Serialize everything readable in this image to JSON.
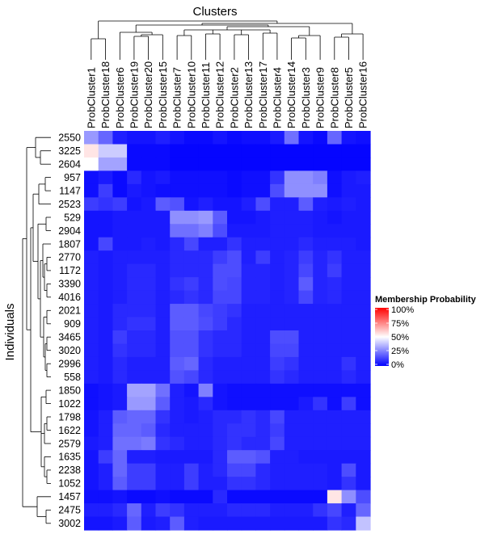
{
  "chart_data": {
    "type": "heatmap",
    "title": "Clusters",
    "ylabel": "Individuals",
    "columns": [
      "ProbCluster1",
      "ProbCluster18",
      "ProbCluster6",
      "ProbCluster19",
      "ProbCluster20",
      "ProbCluster15",
      "ProbCluster7",
      "ProbCluster10",
      "ProbCluster11",
      "ProbCluster12",
      "ProbCluster2",
      "ProbCluster13",
      "ProbCluster17",
      "ProbCluster4",
      "ProbCluster14",
      "ProbCluster3",
      "ProbCluster9",
      "ProbCluster8",
      "ProbCluster5",
      "ProbCluster16"
    ],
    "rows": [
      "2550",
      "3225",
      "2604",
      "957",
      "1147",
      "2523",
      "529",
      "2904",
      "1807",
      "2770",
      "1172",
      "3390",
      "4016",
      "2021",
      "909",
      "3465",
      "3020",
      "2996",
      "558",
      "1850",
      "1022",
      "1798",
      "1622",
      "2579",
      "1635",
      "2238",
      "1052",
      "1457",
      "2475",
      "3002"
    ],
    "values": [
      [
        0.3,
        0.2,
        0.06,
        0.04,
        0.04,
        0.06,
        0.04,
        0.02,
        0.02,
        0.04,
        0.02,
        0.03,
        0.03,
        0.05,
        0.22,
        0.04,
        0.02,
        0.2,
        0.04,
        0.03
      ],
      [
        0.55,
        0.4,
        0.4,
        0.02,
        0.02,
        0.02,
        0.01,
        0.01,
        0.01,
        0.01,
        0.01,
        0.01,
        0.01,
        0.01,
        0.01,
        0.01,
        0.01,
        0.01,
        0.01,
        0.01
      ],
      [
        0.5,
        0.32,
        0.32,
        0.02,
        0.02,
        0.02,
        0.01,
        0.01,
        0.01,
        0.01,
        0.01,
        0.01,
        0.01,
        0.01,
        0.01,
        0.01,
        0.01,
        0.01,
        0.01,
        0.01
      ],
      [
        0.03,
        0.05,
        0.02,
        0.08,
        0.04,
        0.05,
        0.03,
        0.03,
        0.03,
        0.03,
        0.02,
        0.03,
        0.03,
        0.1,
        0.28,
        0.28,
        0.25,
        0.03,
        0.05,
        0.06
      ],
      [
        0.03,
        0.12,
        0.02,
        0.05,
        0.04,
        0.03,
        0.03,
        0.03,
        0.03,
        0.03,
        0.02,
        0.03,
        0.03,
        0.15,
        0.28,
        0.28,
        0.28,
        0.03,
        0.05,
        0.05
      ],
      [
        0.12,
        0.1,
        0.12,
        0.04,
        0.05,
        0.18,
        0.16,
        0.04,
        0.06,
        0.04,
        0.04,
        0.06,
        0.15,
        0.06,
        0.06,
        0.18,
        0.06,
        0.05,
        0.06,
        0.05
      ],
      [
        0.04,
        0.04,
        0.05,
        0.05,
        0.05,
        0.05,
        0.28,
        0.28,
        0.3,
        0.18,
        0.04,
        0.04,
        0.05,
        0.06,
        0.06,
        0.06,
        0.05,
        0.04,
        0.05,
        0.05
      ],
      [
        0.04,
        0.04,
        0.05,
        0.05,
        0.05,
        0.05,
        0.22,
        0.22,
        0.25,
        0.15,
        0.05,
        0.05,
        0.05,
        0.06,
        0.06,
        0.06,
        0.05,
        0.05,
        0.05,
        0.05
      ],
      [
        0.04,
        0.14,
        0.05,
        0.05,
        0.06,
        0.05,
        0.08,
        0.14,
        0.06,
        0.06,
        0.1,
        0.06,
        0.06,
        0.06,
        0.06,
        0.08,
        0.06,
        0.06,
        0.06,
        0.05
      ],
      [
        0.06,
        0.05,
        0.06,
        0.06,
        0.06,
        0.06,
        0.08,
        0.08,
        0.08,
        0.12,
        0.15,
        0.06,
        0.12,
        0.06,
        0.07,
        0.12,
        0.07,
        0.1,
        0.06,
        0.06
      ],
      [
        0.06,
        0.05,
        0.06,
        0.08,
        0.08,
        0.06,
        0.08,
        0.08,
        0.08,
        0.15,
        0.15,
        0.07,
        0.07,
        0.06,
        0.07,
        0.14,
        0.07,
        0.12,
        0.06,
        0.06
      ],
      [
        0.06,
        0.05,
        0.06,
        0.08,
        0.08,
        0.06,
        0.1,
        0.12,
        0.08,
        0.15,
        0.14,
        0.07,
        0.07,
        0.06,
        0.07,
        0.18,
        0.07,
        0.08,
        0.06,
        0.06
      ],
      [
        0.06,
        0.05,
        0.06,
        0.08,
        0.08,
        0.06,
        0.08,
        0.1,
        0.08,
        0.14,
        0.14,
        0.07,
        0.07,
        0.06,
        0.07,
        0.14,
        0.07,
        0.08,
        0.06,
        0.06
      ],
      [
        0.06,
        0.05,
        0.08,
        0.08,
        0.08,
        0.06,
        0.18,
        0.18,
        0.14,
        0.12,
        0.1,
        0.06,
        0.06,
        0.06,
        0.06,
        0.06,
        0.06,
        0.06,
        0.06,
        0.06
      ],
      [
        0.06,
        0.05,
        0.08,
        0.1,
        0.1,
        0.06,
        0.18,
        0.18,
        0.15,
        0.12,
        0.08,
        0.06,
        0.06,
        0.06,
        0.06,
        0.06,
        0.06,
        0.06,
        0.06,
        0.06
      ],
      [
        0.06,
        0.05,
        0.12,
        0.08,
        0.08,
        0.06,
        0.16,
        0.16,
        0.1,
        0.08,
        0.08,
        0.06,
        0.06,
        0.15,
        0.15,
        0.06,
        0.06,
        0.06,
        0.06,
        0.06
      ],
      [
        0.06,
        0.05,
        0.1,
        0.08,
        0.08,
        0.06,
        0.16,
        0.16,
        0.1,
        0.08,
        0.08,
        0.06,
        0.06,
        0.14,
        0.14,
        0.06,
        0.06,
        0.06,
        0.06,
        0.06
      ],
      [
        0.06,
        0.05,
        0.08,
        0.06,
        0.06,
        0.06,
        0.18,
        0.2,
        0.08,
        0.06,
        0.06,
        0.06,
        0.06,
        0.12,
        0.1,
        0.06,
        0.06,
        0.06,
        0.1,
        0.06
      ],
      [
        0.06,
        0.05,
        0.08,
        0.06,
        0.06,
        0.06,
        0.16,
        0.14,
        0.08,
        0.06,
        0.06,
        0.06,
        0.06,
        0.1,
        0.08,
        0.06,
        0.06,
        0.06,
        0.08,
        0.06
      ],
      [
        0.03,
        0.04,
        0.05,
        0.32,
        0.32,
        0.22,
        0.06,
        0.04,
        0.25,
        0.04,
        0.03,
        0.03,
        0.03,
        0.03,
        0.03,
        0.03,
        0.03,
        0.03,
        0.03,
        0.03
      ],
      [
        0.03,
        0.04,
        0.05,
        0.3,
        0.3,
        0.18,
        0.06,
        0.05,
        0.08,
        0.04,
        0.03,
        0.03,
        0.03,
        0.03,
        0.03,
        0.05,
        0.1,
        0.03,
        0.12,
        0.03
      ],
      [
        0.04,
        0.06,
        0.18,
        0.2,
        0.2,
        0.1,
        0.06,
        0.05,
        0.06,
        0.08,
        0.08,
        0.1,
        0.08,
        0.14,
        0.06,
        0.06,
        0.06,
        0.06,
        0.06,
        0.06
      ],
      [
        0.04,
        0.06,
        0.2,
        0.2,
        0.18,
        0.08,
        0.06,
        0.06,
        0.06,
        0.08,
        0.1,
        0.1,
        0.08,
        0.12,
        0.06,
        0.06,
        0.06,
        0.06,
        0.06,
        0.06
      ],
      [
        0.05,
        0.06,
        0.22,
        0.22,
        0.24,
        0.1,
        0.08,
        0.06,
        0.06,
        0.08,
        0.1,
        0.08,
        0.08,
        0.14,
        0.06,
        0.06,
        0.06,
        0.06,
        0.06,
        0.06
      ],
      [
        0.04,
        0.12,
        0.2,
        0.06,
        0.06,
        0.05,
        0.05,
        0.05,
        0.05,
        0.08,
        0.18,
        0.18,
        0.16,
        0.06,
        0.06,
        0.05,
        0.05,
        0.05,
        0.05,
        0.05
      ],
      [
        0.04,
        0.06,
        0.2,
        0.12,
        0.12,
        0.06,
        0.06,
        0.12,
        0.06,
        0.08,
        0.14,
        0.14,
        0.08,
        0.06,
        0.06,
        0.06,
        0.06,
        0.05,
        0.15,
        0.05
      ],
      [
        0.04,
        0.06,
        0.18,
        0.12,
        0.12,
        0.06,
        0.06,
        0.12,
        0.06,
        0.06,
        0.1,
        0.1,
        0.08,
        0.06,
        0.06,
        0.06,
        0.06,
        0.05,
        0.1,
        0.05
      ],
      [
        0.03,
        0.03,
        0.04,
        0.02,
        0.02,
        0.03,
        0.02,
        0.02,
        0.02,
        0.08,
        0.02,
        0.02,
        0.02,
        0.02,
        0.02,
        0.02,
        0.02,
        0.55,
        0.28,
        0.15
      ],
      [
        0.06,
        0.06,
        0.08,
        0.2,
        0.06,
        0.12,
        0.1,
        0.06,
        0.06,
        0.06,
        0.08,
        0.08,
        0.08,
        0.06,
        0.06,
        0.06,
        0.1,
        0.14,
        0.06,
        0.2
      ],
      [
        0.04,
        0.04,
        0.05,
        0.18,
        0.05,
        0.06,
        0.18,
        0.06,
        0.05,
        0.05,
        0.05,
        0.05,
        0.05,
        0.05,
        0.05,
        0.05,
        0.05,
        0.1,
        0.08,
        0.38
      ]
    ],
    "legend": {
      "title": "Membership Probability",
      "ticks": [
        "100%",
        "75%",
        "50%",
        "25%",
        "0%"
      ],
      "placement": "right",
      "colors": {
        "low": "#0000ff",
        "mid": "#ffffff",
        "high": "#ff0000"
      }
    },
    "row_dendrogram": true,
    "column_dendrogram": true
  }
}
